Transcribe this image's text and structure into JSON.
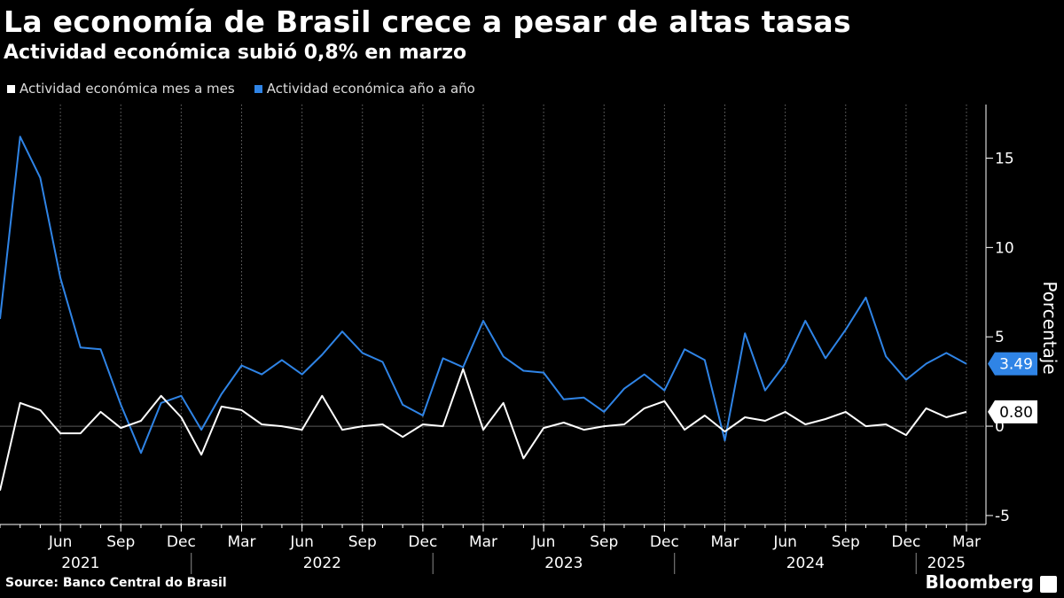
{
  "title": "La economía de Brasil crece a pesar de altas tasas",
  "subtitle": "Actividad económica subió 0,8% en marzo",
  "source": "Source: Banco Central do Brasil",
  "brand": "Bloomberg",
  "chart_data": {
    "type": "line",
    "ylabel": "Porcentaje",
    "ylim": [
      -5.5,
      18
    ],
    "yticks": [
      -5,
      0,
      5,
      10,
      15
    ],
    "grid": "vertical",
    "legend_position": "top-left",
    "x": [
      "2021-03",
      "2021-04",
      "2021-05",
      "2021-06",
      "2021-07",
      "2021-08",
      "2021-09",
      "2021-10",
      "2021-11",
      "2021-12",
      "2022-01",
      "2022-02",
      "2022-03",
      "2022-04",
      "2022-05",
      "2022-06",
      "2022-07",
      "2022-08",
      "2022-09",
      "2022-10",
      "2022-11",
      "2022-12",
      "2023-01",
      "2023-02",
      "2023-03",
      "2023-04",
      "2023-05",
      "2023-06",
      "2023-07",
      "2023-08",
      "2023-09",
      "2023-10",
      "2023-11",
      "2023-12",
      "2024-01",
      "2024-02",
      "2024-03",
      "2024-04",
      "2024-05",
      "2024-06",
      "2024-07",
      "2024-08",
      "2024-09",
      "2024-10",
      "2024-11",
      "2024-12",
      "2025-01",
      "2025-02",
      "2025-03"
    ],
    "month_ticks": [
      {
        "x": "2021-06",
        "label": "Jun"
      },
      {
        "x": "2021-09",
        "label": "Sep"
      },
      {
        "x": "2021-12",
        "label": "Dec"
      },
      {
        "x": "2022-03",
        "label": "Mar"
      },
      {
        "x": "2022-06",
        "label": "Jun"
      },
      {
        "x": "2022-09",
        "label": "Sep"
      },
      {
        "x": "2022-12",
        "label": "Dec"
      },
      {
        "x": "2023-03",
        "label": "Mar"
      },
      {
        "x": "2023-06",
        "label": "Jun"
      },
      {
        "x": "2023-09",
        "label": "Sep"
      },
      {
        "x": "2023-12",
        "label": "Dec"
      },
      {
        "x": "2024-03",
        "label": "Mar"
      },
      {
        "x": "2024-06",
        "label": "Jun"
      },
      {
        "x": "2024-09",
        "label": "Sep"
      },
      {
        "x": "2024-12",
        "label": "Dec"
      },
      {
        "x": "2025-03",
        "label": "Mar"
      }
    ],
    "year_labels": [
      {
        "label": "2021",
        "center": "2021-07"
      },
      {
        "label": "2022",
        "center": "2022-07"
      },
      {
        "label": "2023",
        "center": "2023-07"
      },
      {
        "label": "2024",
        "center": "2024-07"
      },
      {
        "label": "2025",
        "center": "2025-02"
      }
    ],
    "year_separators": [
      "2022-01",
      "2023-01",
      "2024-01",
      "2025-01"
    ],
    "series": [
      {
        "name": "Actividad económica mes a mes",
        "color": "#ffffff",
        "values": [
          -3.6,
          1.3,
          0.9,
          -0.4,
          -0.4,
          0.8,
          -0.1,
          0.3,
          1.7,
          0.5,
          -1.6,
          1.1,
          0.9,
          0.1,
          0.0,
          -0.2,
          1.7,
          -0.2,
          0.0,
          0.1,
          -0.6,
          0.1,
          0.0,
          3.2,
          -0.2,
          1.3,
          -1.8,
          -0.1,
          0.2,
          -0.2,
          0.0,
          0.1,
          1.0,
          1.4,
          -0.2,
          0.6,
          -0.3,
          0.5,
          0.3,
          0.8,
          0.1,
          0.4,
          0.8,
          0.0,
          0.1,
          -0.5,
          1.0,
          0.5,
          0.8
        ],
        "last_label": "0.80"
      },
      {
        "name": "Actividad económica año a año",
        "color": "#2f84e6",
        "values": [
          6.0,
          16.2,
          13.9,
          8.3,
          4.4,
          4.3,
          1.2,
          -1.5,
          1.3,
          1.7,
          -0.2,
          1.8,
          3.4,
          2.9,
          3.7,
          2.9,
          4.0,
          5.3,
          4.1,
          3.6,
          1.2,
          0.6,
          3.8,
          3.3,
          5.9,
          3.9,
          3.1,
          3.0,
          1.5,
          1.6,
          0.8,
          2.1,
          2.9,
          2.0,
          4.3,
          3.7,
          -0.8,
          5.2,
          2.0,
          3.5,
          5.9,
          3.8,
          5.4,
          7.2,
          3.9,
          2.6,
          3.5,
          4.1,
          3.49
        ],
        "last_label": "3.49"
      }
    ]
  }
}
